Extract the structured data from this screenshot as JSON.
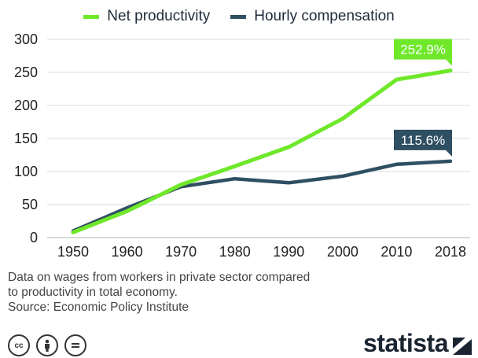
{
  "chart_data": {
    "type": "line",
    "x": [
      "1950",
      "1960",
      "1970",
      "1980",
      "1990",
      "2000",
      "2010",
      "2018"
    ],
    "ylim": [
      0,
      300
    ],
    "yticks": [
      0,
      50,
      100,
      150,
      200,
      250,
      300
    ],
    "grid": true,
    "legend_placement": "top-center",
    "series": [
      {
        "name": "Net productivity",
        "color": "#6fe82a",
        "values": [
          8,
          40,
          80,
          108,
          137,
          180,
          239,
          252.9
        ],
        "end_label": "252.9%"
      },
      {
        "name": "Hourly compensation",
        "color": "#2f4f62",
        "values": [
          10,
          45,
          77,
          89,
          83,
          93,
          111,
          115.6
        ],
        "end_label": "115.6%"
      }
    ]
  },
  "notes": {
    "line1": "Data on wages from workers in private sector compared",
    "line2": "to productivity in total economy.",
    "source": "Source: Economic Policy Institute"
  },
  "license_icons": [
    "cc",
    "by",
    "nd"
  ],
  "brand": {
    "name": "statista",
    "icon": "statista-logo-mark"
  }
}
